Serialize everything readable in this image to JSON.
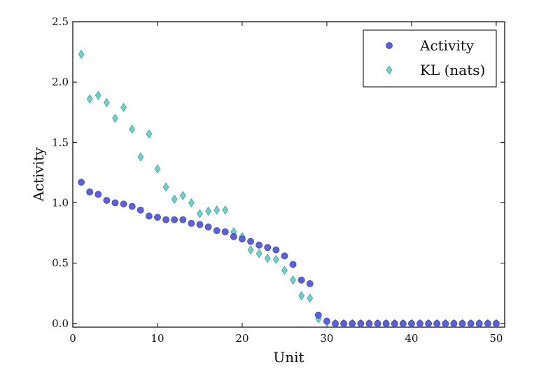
{
  "chart_data": {
    "type": "scatter",
    "xlabel": "Unit",
    "ylabel": "Activity",
    "xlim": [
      0,
      51
    ],
    "ylim": [
      -0.03,
      2.5
    ],
    "xticks": [
      0,
      10,
      20,
      30,
      40,
      50
    ],
    "xtick_labels": [
      "0",
      "10",
      "20",
      "30",
      "40",
      "50"
    ],
    "yticks": [
      0.0,
      0.5,
      1.0,
      1.5,
      2.0,
      2.5
    ],
    "ytick_labels": [
      "0.0",
      "0.5",
      "1.0",
      "1.5",
      "2.0",
      "2.5"
    ],
    "grid": false,
    "legend_position": "top-right",
    "series": [
      {
        "name": "Activity",
        "marker": "circle",
        "color": "#5b5fdb",
        "x": [
          1,
          2,
          3,
          4,
          5,
          6,
          7,
          8,
          9,
          10,
          11,
          12,
          13,
          14,
          15,
          16,
          17,
          18,
          19,
          20,
          21,
          22,
          23,
          24,
          25,
          26,
          27,
          28,
          29,
          30,
          31,
          32,
          33,
          34,
          35,
          36,
          37,
          38,
          39,
          40,
          41,
          42,
          43,
          44,
          45,
          46,
          47,
          48,
          49,
          50
        ],
        "y": [
          1.17,
          1.09,
          1.07,
          1.02,
          1.0,
          0.99,
          0.97,
          0.94,
          0.89,
          0.88,
          0.86,
          0.86,
          0.86,
          0.83,
          0.82,
          0.8,
          0.77,
          0.76,
          0.72,
          0.7,
          0.68,
          0.65,
          0.63,
          0.61,
          0.56,
          0.49,
          0.36,
          0.33,
          0.07,
          0.02,
          0.0,
          0.0,
          0.0,
          0.0,
          0.0,
          0.0,
          0.0,
          0.0,
          0.0,
          0.0,
          0.0,
          0.0,
          0.0,
          0.0,
          0.0,
          0.0,
          0.0,
          0.0,
          0.0,
          0.0
        ]
      },
      {
        "name": "KL (nats)",
        "marker": "diamond",
        "color": "#6fcfcb",
        "x": [
          1,
          2,
          3,
          4,
          5,
          6,
          7,
          8,
          9,
          10,
          11,
          12,
          13,
          14,
          15,
          16,
          17,
          18,
          19,
          20,
          21,
          22,
          23,
          24,
          25,
          26,
          27,
          28,
          29,
          30,
          31,
          32,
          33,
          34,
          35,
          36,
          37,
          38,
          39,
          40,
          41,
          42,
          43,
          44,
          45,
          46,
          47,
          48,
          49,
          50
        ],
        "y": [
          2.23,
          1.86,
          1.89,
          1.83,
          1.7,
          1.79,
          1.61,
          1.38,
          1.57,
          1.28,
          1.13,
          1.03,
          1.06,
          1.0,
          0.91,
          0.93,
          0.94,
          0.94,
          0.76,
          0.72,
          0.61,
          0.58,
          0.54,
          0.53,
          0.44,
          0.36,
          0.23,
          0.21,
          0.04,
          0.01,
          0.0,
          0.0,
          0.0,
          0.0,
          0.0,
          0.0,
          0.0,
          0.0,
          0.0,
          0.0,
          0.0,
          0.0,
          0.0,
          0.0,
          0.0,
          0.0,
          0.0,
          0.0,
          0.0,
          0.0
        ]
      }
    ]
  }
}
